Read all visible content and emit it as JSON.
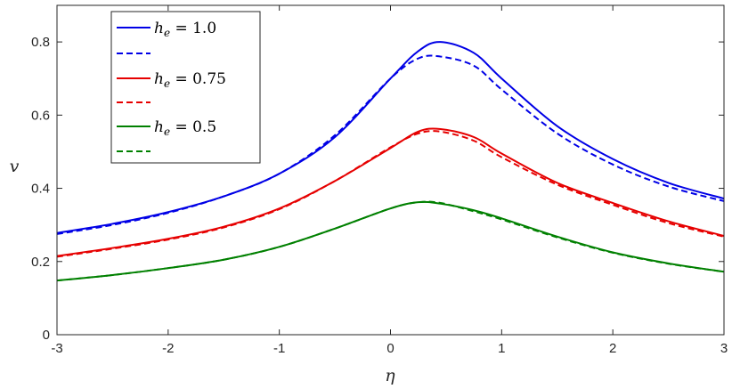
{
  "chart_data": {
    "type": "line",
    "xlabel": "η",
    "ylabel": "v",
    "xlim": [
      -3,
      3
    ],
    "ylim": [
      0,
      0.9
    ],
    "x_ticks": [
      "-3",
      "-2",
      "-1",
      "0",
      "1",
      "2",
      "3"
    ],
    "y_ticks": [
      "0",
      "0.2",
      "0.4",
      "0.6",
      "0.8"
    ],
    "grid": false,
    "legend_position": "top-left",
    "legend": [
      {
        "base": "h",
        "sub": "e",
        "rest": " = 1.0"
      },
      {
        "base": "",
        "sub": "",
        "rest": ""
      },
      {
        "base": "h",
        "sub": "e",
        "rest": " = 0.75"
      },
      {
        "base": "",
        "sub": "",
        "rest": ""
      },
      {
        "base": "h",
        "sub": "e",
        "rest": " = 0.5"
      },
      {
        "base": "",
        "sub": "",
        "rest": ""
      }
    ],
    "x": [
      -3,
      -2.5,
      -2,
      -1.5,
      -1,
      -0.5,
      0,
      0.25,
      0.45,
      0.75,
      1,
      1.5,
      2,
      2.5,
      3
    ],
    "series": [
      {
        "color": "#0000e6",
        "dash": "solid",
        "values": [
          0.278,
          0.303,
          0.335,
          0.378,
          0.44,
          0.54,
          0.7,
          0.775,
          0.8,
          0.77,
          0.7,
          0.57,
          0.48,
          0.415,
          0.372
        ]
      },
      {
        "color": "#0000e6",
        "dash": "dashed",
        "values": [
          0.275,
          0.3,
          0.333,
          0.378,
          0.44,
          0.545,
          0.7,
          0.755,
          0.76,
          0.735,
          0.67,
          0.55,
          0.465,
          0.405,
          0.365
        ]
      },
      {
        "color": "#e60000",
        "dash": "solid",
        "values": [
          0.215,
          0.237,
          0.262,
          0.295,
          0.345,
          0.42,
          0.51,
          0.555,
          0.562,
          0.54,
          0.495,
          0.415,
          0.36,
          0.31,
          0.27
        ]
      },
      {
        "color": "#e60000",
        "dash": "dashed",
        "values": [
          0.213,
          0.235,
          0.26,
          0.293,
          0.343,
          0.42,
          0.512,
          0.55,
          0.555,
          0.53,
          0.485,
          0.41,
          0.355,
          0.305,
          0.268
        ]
      },
      {
        "color": "#008000",
        "dash": "solid",
        "values": [
          0.148,
          0.163,
          0.182,
          0.205,
          0.24,
          0.29,
          0.345,
          0.362,
          0.358,
          0.34,
          0.318,
          0.268,
          0.225,
          0.195,
          0.172
        ]
      },
      {
        "color": "#008000",
        "dash": "dashed",
        "values": [
          0.148,
          0.163,
          0.182,
          0.205,
          0.24,
          0.29,
          0.345,
          0.362,
          0.36,
          0.337,
          0.315,
          0.266,
          0.224,
          0.194,
          0.172
        ]
      }
    ]
  }
}
